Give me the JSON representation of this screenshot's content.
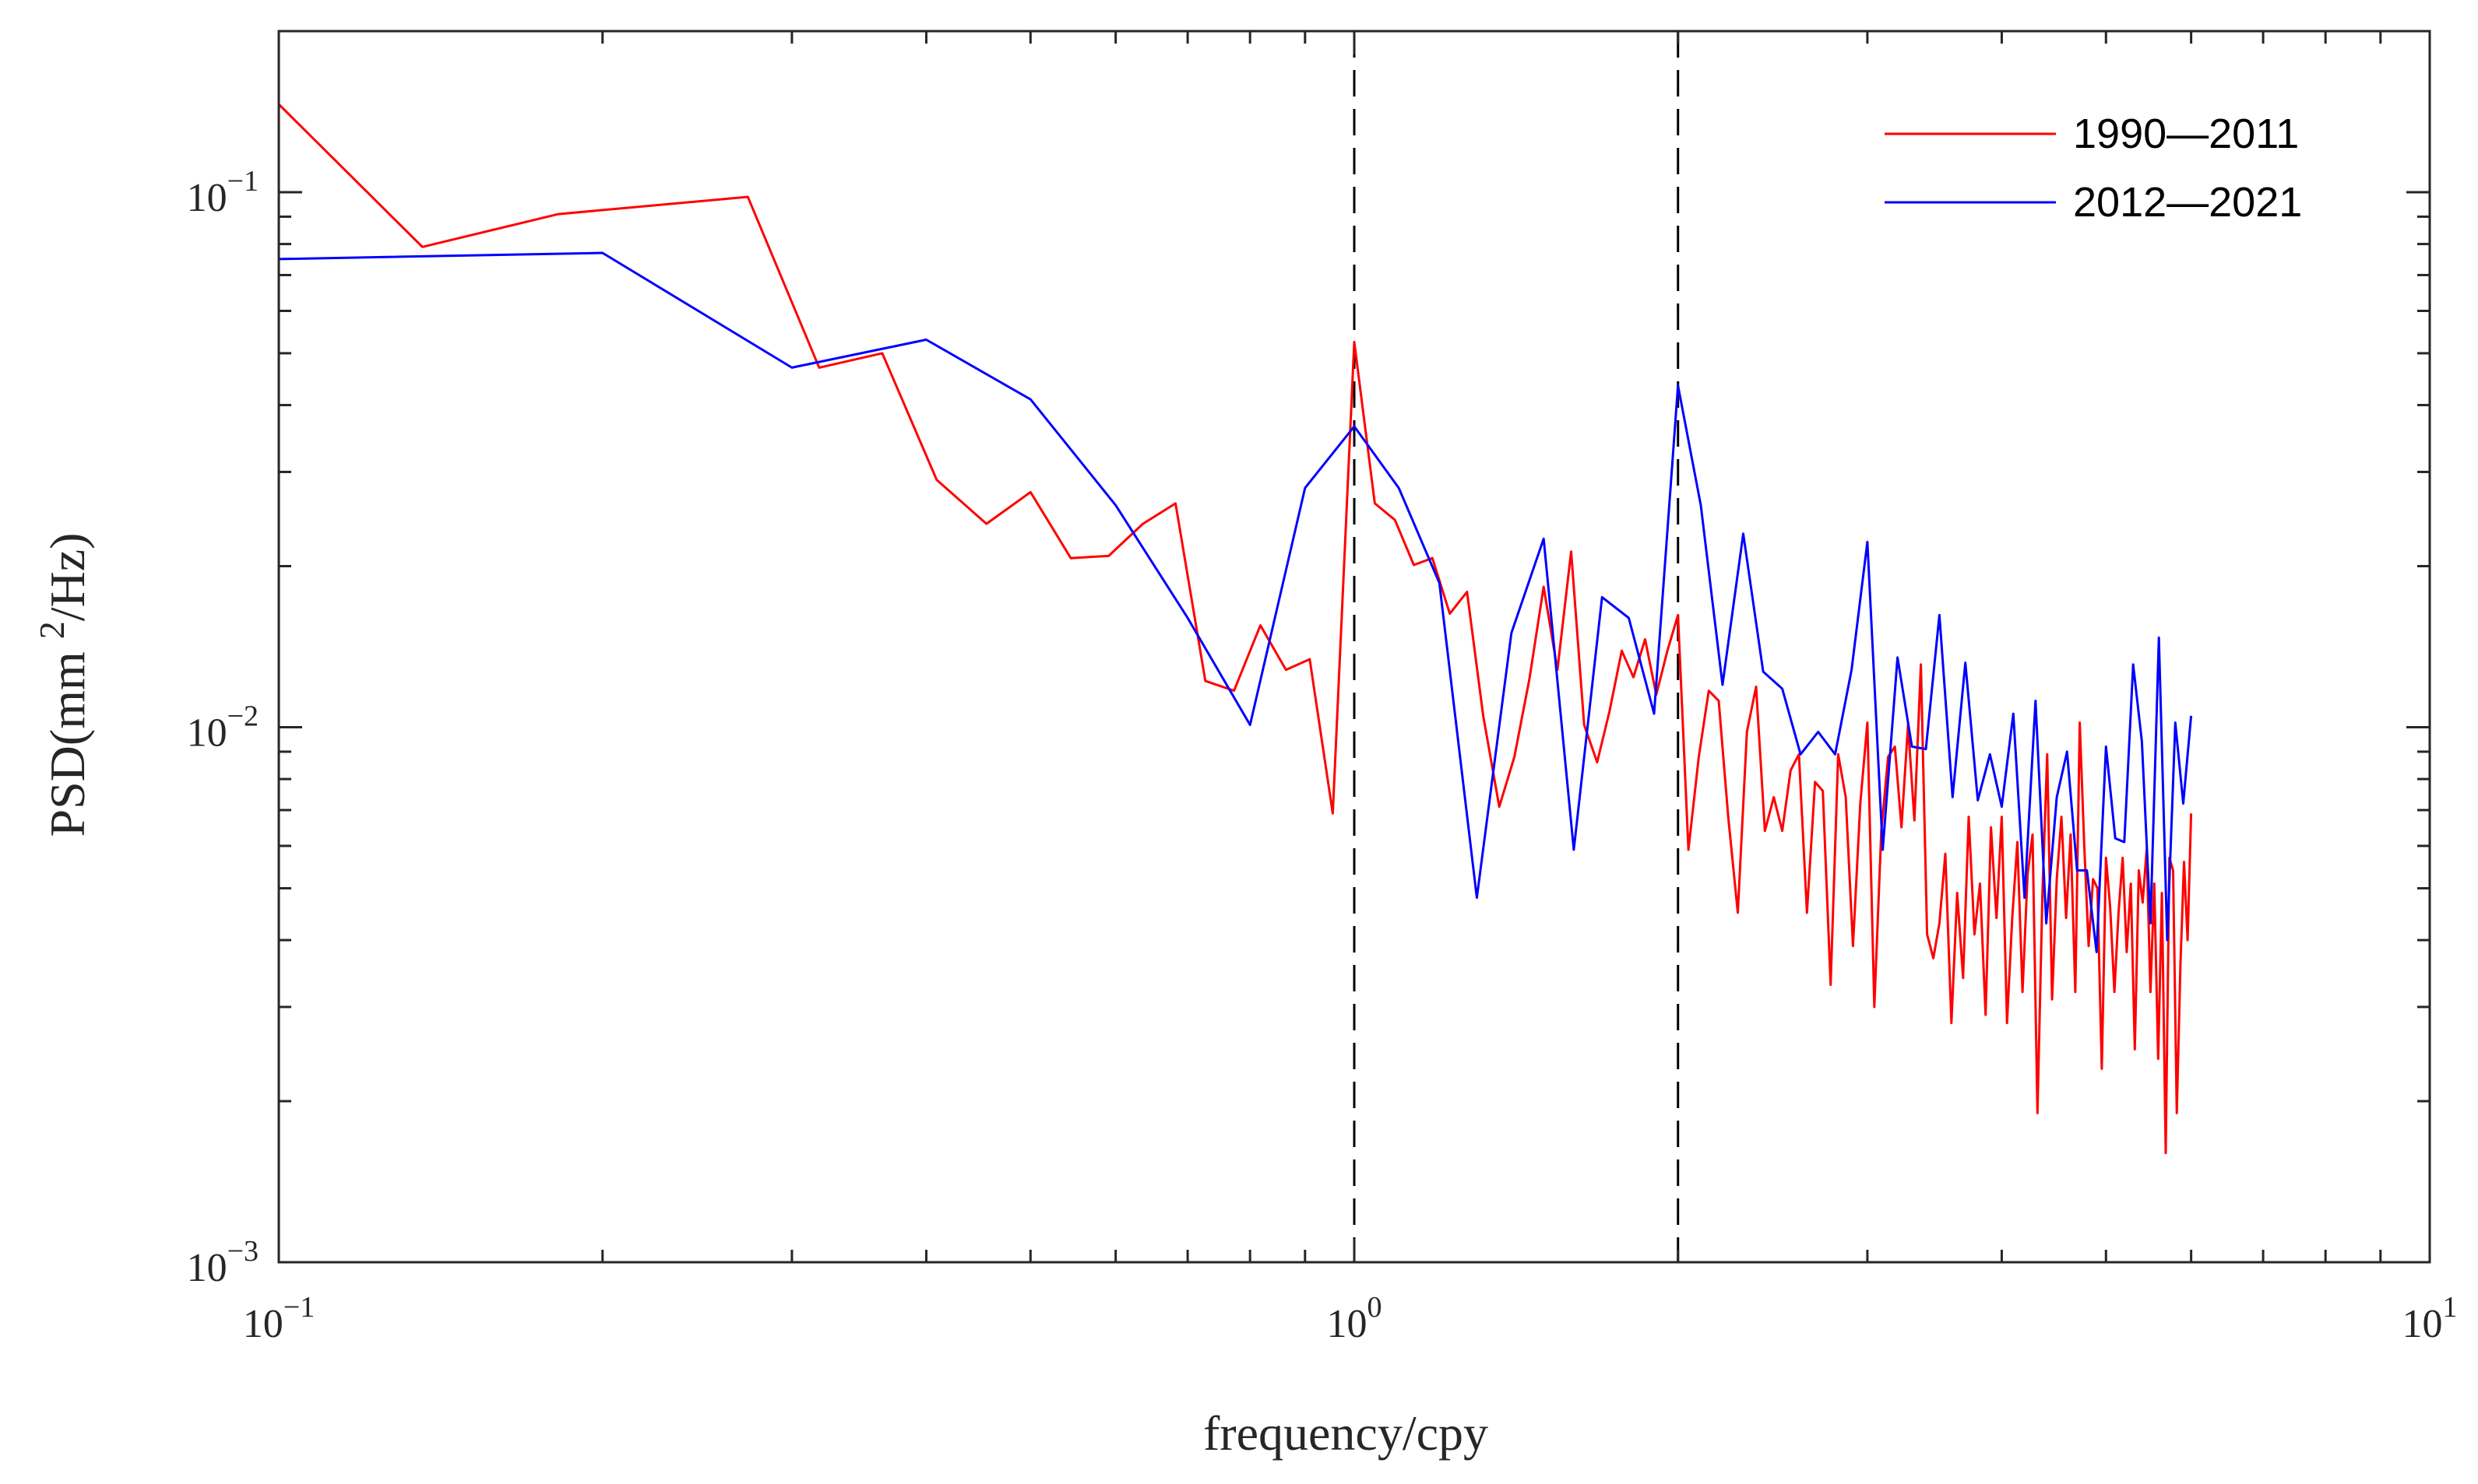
{
  "chart_data": {
    "type": "line",
    "title": "",
    "xlabel": "frequency/cpy",
    "ylabel": "PSD(mm 2/Hz)",
    "ylabel_parts": {
      "before": "PSD(mm ",
      "sup": "2",
      "after": "/Hz)"
    },
    "xscale": "log",
    "yscale": "log",
    "xlim": [
      0.1,
      10
    ],
    "ylim": [
      0.001,
      0.2
    ],
    "x_ticks": [
      {
        "value": 0.1,
        "base": "10",
        "exp": "−1"
      },
      {
        "value": 1,
        "base": "10",
        "exp": "0"
      },
      {
        "value": 10,
        "base": "10",
        "exp": "1"
      }
    ],
    "y_ticks": [
      {
        "value": 0.001,
        "base": "10",
        "exp": "−3"
      },
      {
        "value": 0.01,
        "base": "10",
        "exp": "−2"
      },
      {
        "value": 0.1,
        "base": "10",
        "exp": "−1"
      }
    ],
    "grid": false,
    "legend_position": "top-right",
    "reference_lines": [
      {
        "x": 1,
        "style": "dashed",
        "color": "#000000"
      },
      {
        "x": 2,
        "style": "dashed",
        "color": "#000000"
      }
    ],
    "series": [
      {
        "name": "1990—2011",
        "color": "#ff0000",
        "x": [
          0.1,
          0.136,
          0.182,
          0.273,
          0.318,
          0.364,
          0.409,
          0.455,
          0.5,
          0.545,
          0.591,
          0.636,
          0.682,
          0.727,
          0.773,
          0.818,
          0.864,
          0.909,
          0.955,
          1.0,
          1.045,
          1.091,
          1.136,
          1.182,
          1.227,
          1.273,
          1.318,
          1.364,
          1.409,
          1.455,
          1.5,
          1.545,
          1.591,
          1.636,
          1.682,
          1.727,
          1.773,
          1.818,
          1.864,
          1.909,
          1.955,
          2.0,
          2.045,
          2.091,
          2.136,
          2.182,
          2.227,
          2.273,
          2.318,
          2.364,
          2.409,
          2.455,
          2.5,
          2.545,
          2.591,
          2.636,
          2.682,
          2.727,
          2.773,
          2.818,
          2.864,
          2.909,
          2.955,
          3.0,
          3.045,
          3.091,
          3.136,
          3.182,
          3.227,
          3.273,
          3.318,
          3.364,
          3.409,
          3.455,
          3.5,
          3.545,
          3.591,
          3.636,
          3.682,
          3.727,
          3.773,
          3.818,
          3.864,
          3.909,
          3.955,
          4.0,
          4.045,
          4.091,
          4.136,
          4.182,
          4.227,
          4.273,
          4.318,
          4.364,
          4.409,
          4.455,
          4.5,
          4.545,
          4.591,
          4.636,
          4.682,
          4.727,
          4.773,
          4.818,
          4.864,
          4.909,
          4.955,
          5.0,
          5.045,
          5.091,
          5.136,
          5.182,
          5.227,
          5.273,
          5.318,
          5.364,
          5.409,
          5.455,
          5.5,
          5.545,
          5.591,
          5.636,
          5.682,
          5.727,
          5.773,
          5.818,
          5.864,
          5.909,
          5.955,
          6.0
        ],
        "y": [
          0.146,
          0.079,
          0.091,
          0.098,
          0.047,
          0.05,
          0.029,
          0.024,
          0.0275,
          0.0207,
          0.0209,
          0.024,
          0.0262,
          0.0122,
          0.0117,
          0.0155,
          0.0128,
          0.0134,
          0.0069,
          0.0525,
          0.0262,
          0.0244,
          0.0201,
          0.0207,
          0.0163,
          0.0179,
          0.0105,
          0.0071,
          0.0088,
          0.0123,
          0.0183,
          0.0128,
          0.0213,
          0.0101,
          0.0086,
          0.0107,
          0.0139,
          0.0124,
          0.0146,
          0.0115,
          0.0139,
          0.0162,
          0.0059,
          0.0088,
          0.0117,
          0.0112,
          0.0068,
          0.0045,
          0.0098,
          0.0119,
          0.0064,
          0.0074,
          0.0064,
          0.0083,
          0.0089,
          0.0045,
          0.0079,
          0.0076,
          0.0033,
          0.0089,
          0.0074,
          0.0039,
          0.0072,
          0.0102,
          0.003,
          0.0064,
          0.0088,
          0.0092,
          0.0065,
          0.0101,
          0.0067,
          0.0131,
          0.0041,
          0.0037,
          0.0043,
          0.0058,
          0.0028,
          0.0049,
          0.0034,
          0.0068,
          0.0041,
          0.0051,
          0.0029,
          0.0065,
          0.0044,
          0.0068,
          0.0028,
          0.0044,
          0.0061,
          0.0032,
          0.0053,
          0.0063,
          0.0019,
          0.0049,
          0.0089,
          0.0031,
          0.0052,
          0.0068,
          0.0044,
          0.0063,
          0.0032,
          0.0102,
          0.006,
          0.0039,
          0.0052,
          0.005,
          0.0023,
          0.0057,
          0.0046,
          0.0032,
          0.0045,
          0.0057,
          0.0038,
          0.0051,
          0.0025,
          0.0054,
          0.0047,
          0.0059,
          0.0032,
          0.0051,
          0.0024,
          0.0049,
          0.0016,
          0.0057,
          0.0054,
          0.0019,
          0.0036,
          0.0056,
          0.004,
          0.0069
        ]
      },
      {
        "name": "2012—2021",
        "color": "#0000ff",
        "x": [
          0.1,
          0.2,
          0.3,
          0.4,
          0.5,
          0.6,
          0.7,
          0.8,
          0.9,
          1.0,
          1.1,
          1.2,
          1.3,
          1.4,
          1.5,
          1.6,
          1.7,
          1.8,
          1.9,
          2.0,
          2.1,
          2.2,
          2.3,
          2.4,
          2.5,
          2.6,
          2.7,
          2.8,
          2.9,
          3.0,
          3.1,
          3.2,
          3.3,
          3.4,
          3.5,
          3.6,
          3.7,
          3.8,
          3.9,
          4.0,
          4.1,
          4.2,
          4.3,
          4.4,
          4.5,
          4.6,
          4.7,
          4.8,
          4.9,
          5.0,
          5.1,
          5.2,
          5.3,
          5.4,
          5.5,
          5.6,
          5.7,
          5.8,
          5.9,
          6.0
        ],
        "y": [
          0.075,
          0.077,
          0.047,
          0.053,
          0.041,
          0.026,
          0.016,
          0.0101,
          0.028,
          0.0365,
          0.028,
          0.0186,
          0.0048,
          0.015,
          0.0225,
          0.0059,
          0.0175,
          0.016,
          0.0106,
          0.0435,
          0.026,
          0.012,
          0.023,
          0.0127,
          0.0118,
          0.0089,
          0.0098,
          0.0089,
          0.0128,
          0.0222,
          0.0059,
          0.0135,
          0.0092,
          0.0091,
          0.0162,
          0.0074,
          0.0132,
          0.0073,
          0.0089,
          0.0071,
          0.0106,
          0.0048,
          0.0112,
          0.0043,
          0.0074,
          0.009,
          0.0054,
          0.0054,
          0.0038,
          0.0092,
          0.0062,
          0.0061,
          0.0131,
          0.0094,
          0.0043,
          0.0147,
          0.004,
          0.0102,
          0.0072,
          0.0105
        ]
      }
    ]
  }
}
